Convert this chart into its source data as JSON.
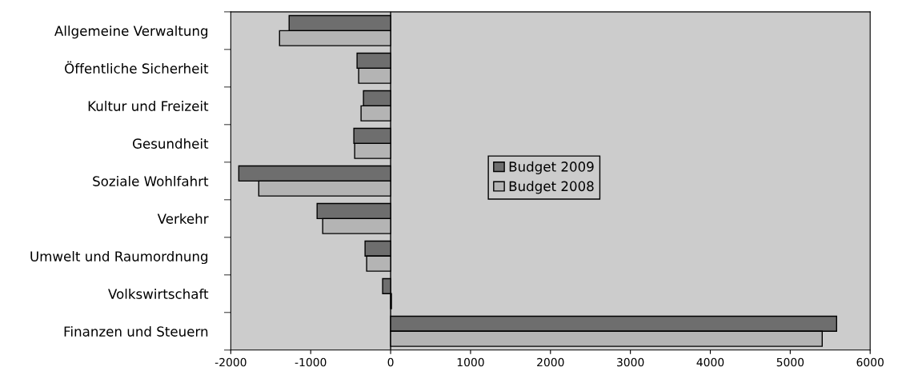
{
  "chart_data": {
    "type": "bar",
    "orientation": "horizontal",
    "categories": [
      "Allgemeine Verwaltung",
      "Öffentliche Sicherheit",
      "Kultur und Freizeit",
      "Gesundheit",
      "Soziale Wohlfahrt",
      "Verkehr",
      "Umwelt und Raumordnung",
      "Volkswirtschaft",
      "Finanzen und Steuern"
    ],
    "series": [
      {
        "name": "Budget 2009",
        "color": "#6e6e6e",
        "values": [
          -1270,
          -420,
          -340,
          -460,
          -1900,
          -920,
          -320,
          -100,
          5580
        ]
      },
      {
        "name": "Budget 2008",
        "color": "#b4b4b4",
        "values": [
          -1390,
          -400,
          -370,
          -450,
          -1650,
          -850,
          -300,
          10,
          5400
        ]
      }
    ],
    "xlim": [
      -2000,
      6000
    ],
    "xticks": [
      -2000,
      -1000,
      0,
      1000,
      2000,
      3000,
      4000,
      5000,
      6000
    ],
    "ref_lines": [
      {
        "axis": "x",
        "value": 0,
        "color": "#000000"
      }
    ],
    "legend": "center",
    "grid": false
  }
}
